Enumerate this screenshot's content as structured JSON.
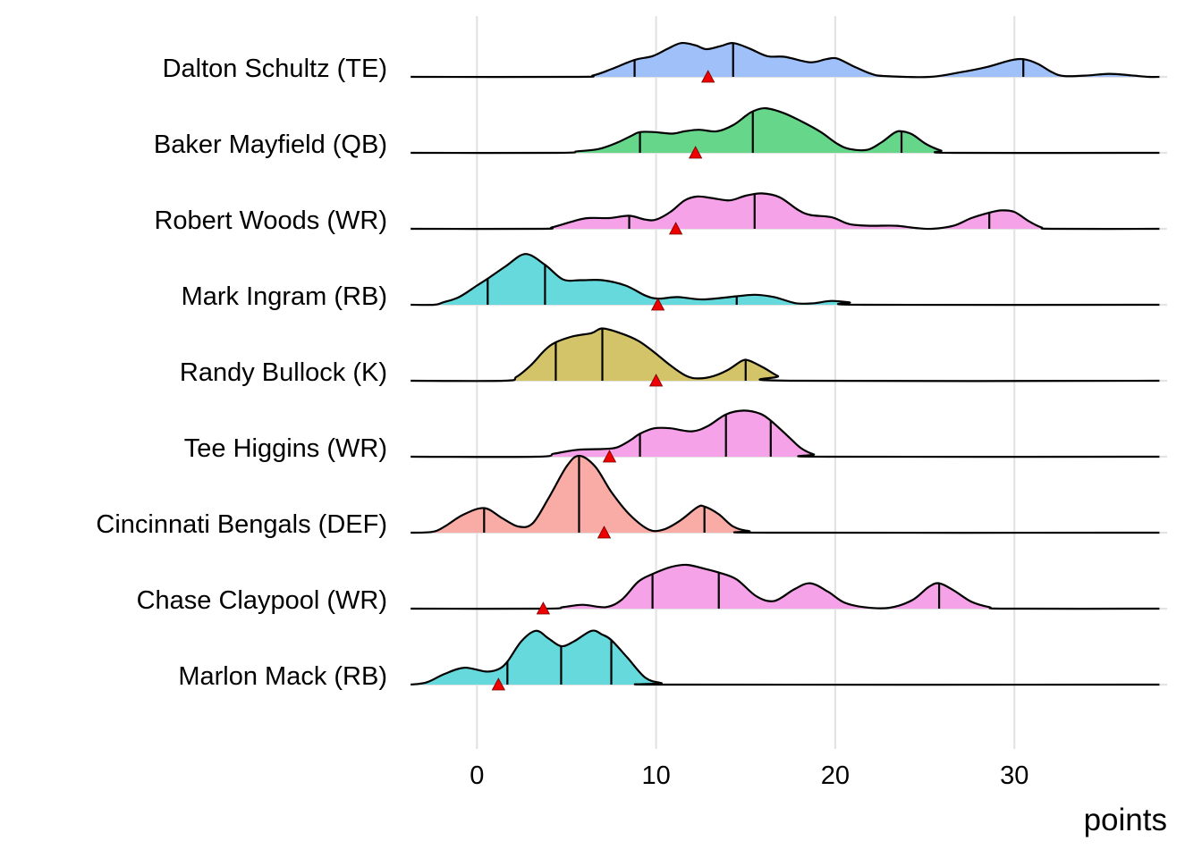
{
  "chart_data": {
    "type": "ridgeline",
    "title": "",
    "xlabel": "points",
    "ylabel": "",
    "xlim": [
      -3.7,
      38.5
    ],
    "x_ticks": [
      0,
      10,
      20,
      30
    ],
    "x_tick_labels": [
      "0",
      "10",
      "20",
      "30"
    ],
    "grid": "vertical major gridlines",
    "legend": "none",
    "mean_marker": {
      "shape": "triangle",
      "color": "#ee0000"
    },
    "series": [
      {
        "name": "Dalton Schultz (TE)",
        "color": "#a0c0fa",
        "quantiles": [
          8.8,
          14.3,
          30.5
        ],
        "mean": 12.9,
        "density": [
          [
            -3.7,
            0
          ],
          [
            5.5,
            0
          ],
          [
            6.5,
            0.02
          ],
          [
            7.5,
            0.1
          ],
          [
            8.8,
            0.22
          ],
          [
            9.8,
            0.27
          ],
          [
            10.6,
            0.36
          ],
          [
            11.4,
            0.44
          ],
          [
            12.2,
            0.41
          ],
          [
            12.8,
            0.36
          ],
          [
            13.6,
            0.4
          ],
          [
            14.3,
            0.44
          ],
          [
            15.2,
            0.37
          ],
          [
            16.2,
            0.27
          ],
          [
            17.2,
            0.26
          ],
          [
            18.6,
            0.19
          ],
          [
            19.5,
            0.23
          ],
          [
            20.1,
            0.24
          ],
          [
            21.0,
            0.14
          ],
          [
            22.0,
            0.04
          ],
          [
            22.8,
            0.01
          ],
          [
            25.3,
            0.0
          ],
          [
            27.0,
            0.06
          ],
          [
            28.5,
            0.13
          ],
          [
            29.7,
            0.21
          ],
          [
            30.5,
            0.23
          ],
          [
            31.3,
            0.17
          ],
          [
            32.1,
            0.06
          ],
          [
            32.8,
            0.01
          ],
          [
            34.2,
            0.02
          ],
          [
            35.3,
            0.04
          ],
          [
            36.5,
            0.02
          ],
          [
            37.5,
            0.0
          ],
          [
            38.1,
            0
          ]
        ]
      },
      {
        "name": "Baker Mayfield (QB)",
        "color": "#66d68a",
        "quantiles": [
          9.1,
          15.4,
          23.7
        ],
        "mean": 12.2,
        "density": [
          [
            -3.7,
            0
          ],
          [
            4.5,
            0
          ],
          [
            5.6,
            0.02
          ],
          [
            6.8,
            0.05
          ],
          [
            7.8,
            0.13
          ],
          [
            8.6,
            0.22
          ],
          [
            9.1,
            0.27
          ],
          [
            9.9,
            0.27
          ],
          [
            10.9,
            0.25
          ],
          [
            11.6,
            0.28
          ],
          [
            12.4,
            0.3
          ],
          [
            13.4,
            0.28
          ],
          [
            14.3,
            0.36
          ],
          [
            15.0,
            0.48
          ],
          [
            15.4,
            0.54
          ],
          [
            16.1,
            0.58
          ],
          [
            17.1,
            0.52
          ],
          [
            18.2,
            0.4
          ],
          [
            19.2,
            0.27
          ],
          [
            20.1,
            0.12
          ],
          [
            20.8,
            0.05
          ],
          [
            21.8,
            0.04
          ],
          [
            22.6,
            0.14
          ],
          [
            23.3,
            0.26
          ],
          [
            23.7,
            0.28
          ],
          [
            24.3,
            0.24
          ],
          [
            25.1,
            0.11
          ],
          [
            25.9,
            0.03
          ],
          [
            26.6,
            0.0
          ],
          [
            38.1,
            0
          ]
        ]
      },
      {
        "name": "Robert Woods (WR)",
        "color": "#f6a2e8",
        "quantiles": [
          8.5,
          15.5,
          28.6
        ],
        "mean": 11.1,
        "density": [
          [
            -3.7,
            0
          ],
          [
            3.5,
            0
          ],
          [
            4.2,
            0.02
          ],
          [
            5.4,
            0.1
          ],
          [
            6.2,
            0.14
          ],
          [
            7.4,
            0.14
          ],
          [
            8.5,
            0.17
          ],
          [
            9.4,
            0.12
          ],
          [
            10.0,
            0.12
          ],
          [
            10.8,
            0.22
          ],
          [
            11.6,
            0.37
          ],
          [
            12.3,
            0.42
          ],
          [
            13.1,
            0.4
          ],
          [
            14.1,
            0.37
          ],
          [
            15.0,
            0.43
          ],
          [
            15.9,
            0.46
          ],
          [
            16.9,
            0.41
          ],
          [
            17.9,
            0.25
          ],
          [
            18.6,
            0.18
          ],
          [
            19.8,
            0.15
          ],
          [
            20.8,
            0.06
          ],
          [
            22.0,
            0.04
          ],
          [
            23.4,
            0.04
          ],
          [
            24.5,
            0.01
          ],
          [
            25.4,
            0.0
          ],
          [
            26.6,
            0.04
          ],
          [
            27.6,
            0.14
          ],
          [
            28.6,
            0.21
          ],
          [
            29.3,
            0.24
          ],
          [
            30.0,
            0.22
          ],
          [
            30.8,
            0.1
          ],
          [
            31.5,
            0.02
          ],
          [
            32.2,
            0
          ],
          [
            38.1,
            0
          ]
        ]
      },
      {
        "name": "Mark Ingram (RB)",
        "color": "#66d9dc",
        "quantiles": [
          0.6,
          3.8,
          14.5
        ],
        "mean": 10.1,
        "density": [
          [
            -3.7,
            0
          ],
          [
            -2.4,
            0.0
          ],
          [
            -1.9,
            0.03
          ],
          [
            -1.0,
            0.1
          ],
          [
            0.0,
            0.25
          ],
          [
            0.6,
            0.34
          ],
          [
            1.6,
            0.5
          ],
          [
            2.7,
            0.66
          ],
          [
            3.8,
            0.52
          ],
          [
            4.8,
            0.33
          ],
          [
            5.8,
            0.32
          ],
          [
            7.0,
            0.32
          ],
          [
            8.3,
            0.25
          ],
          [
            9.4,
            0.12
          ],
          [
            10.1,
            0.08
          ],
          [
            11.2,
            0.1
          ],
          [
            12.6,
            0.07
          ],
          [
            14.5,
            0.11
          ],
          [
            15.5,
            0.13
          ],
          [
            16.6,
            0.1
          ],
          [
            17.8,
            0.02
          ],
          [
            18.8,
            0.02
          ],
          [
            19.8,
            0.05
          ],
          [
            20.8,
            0.03
          ],
          [
            21.6,
            0.0
          ],
          [
            38.1,
            0
          ]
        ]
      },
      {
        "name": "Randy Bullock (K)",
        "color": "#d3c46a",
        "quantiles": [
          4.4,
          7.0,
          15.0
        ],
        "mean": 10.0,
        "density": [
          [
            -3.7,
            0
          ],
          [
            1.5,
            0
          ],
          [
            2.2,
            0.05
          ],
          [
            3.0,
            0.2
          ],
          [
            3.8,
            0.4
          ],
          [
            4.4,
            0.5
          ],
          [
            5.4,
            0.58
          ],
          [
            6.4,
            0.62
          ],
          [
            7.0,
            0.68
          ],
          [
            8.0,
            0.62
          ],
          [
            9.0,
            0.52
          ],
          [
            9.9,
            0.37
          ],
          [
            10.8,
            0.2
          ],
          [
            11.7,
            0.06
          ],
          [
            12.4,
            0.03
          ],
          [
            13.2,
            0.06
          ],
          [
            14.0,
            0.14
          ],
          [
            14.8,
            0.26
          ],
          [
            15.2,
            0.26
          ],
          [
            16.0,
            0.17
          ],
          [
            16.8,
            0.06
          ],
          [
            17.5,
            0.0
          ],
          [
            38.1,
            0
          ]
        ]
      },
      {
        "name": "Tee Higgins (WR)",
        "color": "#f6a2e8",
        "quantiles": [
          9.1,
          13.9,
          16.4
        ],
        "mean": 7.4,
        "density": [
          [
            -3.7,
            0
          ],
          [
            3.3,
            0
          ],
          [
            4.3,
            0.04
          ],
          [
            5.6,
            0.09
          ],
          [
            7.0,
            0.1
          ],
          [
            7.8,
            0.12
          ],
          [
            8.6,
            0.22
          ],
          [
            9.1,
            0.3
          ],
          [
            9.9,
            0.37
          ],
          [
            10.8,
            0.37
          ],
          [
            12.0,
            0.33
          ],
          [
            12.9,
            0.4
          ],
          [
            13.9,
            0.55
          ],
          [
            14.9,
            0.6
          ],
          [
            15.8,
            0.56
          ],
          [
            16.4,
            0.47
          ],
          [
            17.3,
            0.28
          ],
          [
            18.1,
            0.11
          ],
          [
            18.8,
            0.03
          ],
          [
            19.5,
            0.0
          ],
          [
            38.1,
            0
          ]
        ]
      },
      {
        "name": "Cincinnati Bengals (DEF)",
        "color": "#f8aca5",
        "quantiles": [
          0.4,
          5.7,
          12.7
        ],
        "mean": 7.1,
        "density": [
          [
            -3.7,
            0
          ],
          [
            -2.5,
            0.01
          ],
          [
            -1.8,
            0.08
          ],
          [
            -0.8,
            0.23
          ],
          [
            0.4,
            0.32
          ],
          [
            1.4,
            0.19
          ],
          [
            2.3,
            0.08
          ],
          [
            3.1,
            0.12
          ],
          [
            4.0,
            0.45
          ],
          [
            5.0,
            0.86
          ],
          [
            5.7,
            1.0
          ],
          [
            6.6,
            0.86
          ],
          [
            7.5,
            0.53
          ],
          [
            8.5,
            0.24
          ],
          [
            9.6,
            0.04
          ],
          [
            10.4,
            0.04
          ],
          [
            11.3,
            0.15
          ],
          [
            12.3,
            0.33
          ],
          [
            12.7,
            0.34
          ],
          [
            13.5,
            0.24
          ],
          [
            14.3,
            0.08
          ],
          [
            15.2,
            0.02
          ],
          [
            16.3,
            0.0
          ],
          [
            38.1,
            0
          ]
        ]
      },
      {
        "name": "Chase Claypool (WR)",
        "color": "#f6a2e8",
        "quantiles": [
          9.8,
          13.5,
          25.8
        ],
        "mean": 3.7,
        "density": [
          [
            -3.7,
            0
          ],
          [
            3.8,
            0
          ],
          [
            4.8,
            0.02
          ],
          [
            5.9,
            0.05
          ],
          [
            7.2,
            0.02
          ],
          [
            8.1,
            0.12
          ],
          [
            9.0,
            0.35
          ],
          [
            9.8,
            0.45
          ],
          [
            10.8,
            0.54
          ],
          [
            11.7,
            0.57
          ],
          [
            12.7,
            0.52
          ],
          [
            13.5,
            0.47
          ],
          [
            14.5,
            0.38
          ],
          [
            15.6,
            0.16
          ],
          [
            16.6,
            0.1
          ],
          [
            17.7,
            0.25
          ],
          [
            18.6,
            0.33
          ],
          [
            19.6,
            0.22
          ],
          [
            20.5,
            0.08
          ],
          [
            21.6,
            0.02
          ],
          [
            23.0,
            0.01
          ],
          [
            24.3,
            0.11
          ],
          [
            25.2,
            0.28
          ],
          [
            25.8,
            0.33
          ],
          [
            26.6,
            0.24
          ],
          [
            27.6,
            0.09
          ],
          [
            28.6,
            0.02
          ],
          [
            29.6,
            0.0
          ],
          [
            38.1,
            0
          ]
        ]
      },
      {
        "name": "Marlon Mack (RB)",
        "color": "#66d9dc",
        "quantiles": [
          1.7,
          4.7,
          7.5
        ],
        "mean": 1.2,
        "density": [
          [
            -3.7,
            0
          ],
          [
            -2.8,
            0.03
          ],
          [
            -1.8,
            0.14
          ],
          [
            -0.7,
            0.22
          ],
          [
            0.5,
            0.17
          ],
          [
            1.2,
            0.2
          ],
          [
            1.7,
            0.3
          ],
          [
            2.5,
            0.57
          ],
          [
            3.3,
            0.7
          ],
          [
            4.0,
            0.6
          ],
          [
            4.7,
            0.5
          ],
          [
            5.4,
            0.56
          ],
          [
            6.4,
            0.7
          ],
          [
            7.0,
            0.65
          ],
          [
            7.5,
            0.58
          ],
          [
            8.4,
            0.35
          ],
          [
            9.4,
            0.09
          ],
          [
            10.3,
            0.02
          ],
          [
            11.0,
            0.0
          ],
          [
            38.1,
            0
          ]
        ]
      }
    ]
  }
}
